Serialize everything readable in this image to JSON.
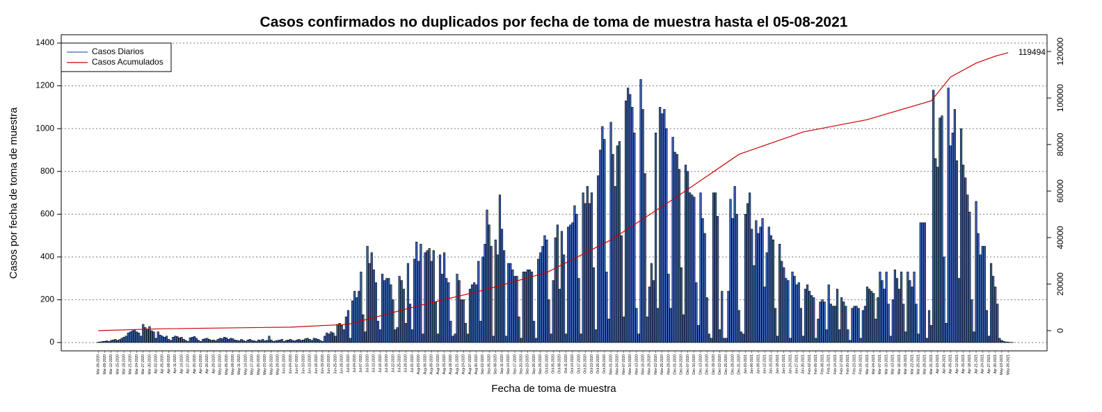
{
  "chart_data": {
    "type": "bar",
    "title": "Casos confirmados no duplicados por fecha de toma de muestra hasta el 05-08-2021",
    "x_label": "Fecha de toma de muestra",
    "y_label": "Casos por fecha de toma de muestra",
    "ylim": [
      -39,
      1439
    ],
    "yticks": [
      0,
      200,
      400,
      600,
      800,
      1000,
      1200,
      1400
    ],
    "y2lim": [
      -8700,
      127200
    ],
    "y2ticks": [
      0,
      20000,
      40000,
      60000,
      80000,
      100000,
      120000
    ],
    "grid": true,
    "legend": "top-left",
    "categories": [
      "Mar-06-2020",
      null,
      null,
      "Mar-09-2020",
      null,
      null,
      "Mar-12-2020",
      null,
      null,
      "Mar-15-2020",
      null,
      null,
      "Mar-18-2020",
      null,
      null,
      "Mar-21-2020",
      null,
      null,
      "Mar-24-2020",
      null,
      null,
      "Mar-27-2020",
      null,
      null,
      "Mar-30-2020",
      null,
      null,
      "Apr-02-2020",
      null,
      null,
      "Apr-05-2020",
      null,
      null,
      "Apr-08-2020",
      null,
      null,
      "Apr-11-2020",
      null,
      null,
      "Apr-14-2020",
      null,
      null,
      "Apr-17-2020",
      null,
      null,
      "Apr-20-2020",
      null,
      null,
      "Apr-23-2020",
      null,
      null,
      "Apr-26-2020",
      null,
      null,
      "Apr-29-2020",
      null,
      null,
      "May-02-2020",
      null,
      null,
      "May-05-2020",
      null,
      null,
      "May-08-2020",
      null,
      null,
      "May-11-2020",
      null,
      null,
      "May-14-2020",
      null,
      null,
      "May-17-2020",
      null,
      null,
      "May-20-2020",
      null,
      null,
      "May-23-2020",
      null,
      null,
      "May-26-2020",
      null,
      null,
      "May-29-2020",
      null,
      null,
      "Jun-01-2020",
      null,
      null,
      "Jun-04-2020",
      null,
      null,
      "Jun-07-2020",
      null,
      null,
      "Jun-10-2020",
      null,
      null,
      "Jun-13-2020",
      null,
      null,
      "Jun-16-2020",
      null,
      null,
      "Jun-19-2020",
      null,
      null,
      "Jun-22-2020",
      null,
      null,
      "Jun-25-2020",
      null,
      null,
      "Jun-28-2020",
      null,
      null,
      "Jul-01-2020",
      null,
      null,
      "Jul-04-2020",
      null,
      null,
      "Jul-07-2020",
      null,
      null,
      "Jul-10-2020",
      null,
      null,
      "Jul-13-2020",
      null,
      null,
      "Jul-16-2020",
      null,
      null,
      "Jul-19-2020",
      null,
      null,
      "Jul-22-2020",
      null,
      null,
      "Jul-25-2020",
      null,
      null,
      "Jul-28-2020",
      null,
      null,
      "Jul-31-2020",
      null,
      null,
      "Aug-03-2020",
      null,
      null,
      "Aug-06-2020",
      null,
      null,
      "Aug-09-2020",
      null,
      null,
      "Aug-12-2020",
      null,
      null,
      "Aug-15-2020",
      null,
      null,
      "Aug-18-2020",
      null,
      null,
      "Aug-21-2020",
      null,
      null,
      "Aug-24-2020",
      null,
      null,
      "Aug-27-2020",
      null,
      null,
      "Aug-30-2020",
      null,
      null,
      "Sep-02-2020",
      null,
      null,
      "Sep-05-2020",
      null,
      null,
      "Sep-08-2020",
      null,
      null,
      "Sep-11-2020",
      null,
      null,
      "Sep-14-2020",
      null,
      null,
      "Sep-17-2020",
      null,
      null,
      "Sep-20-2020",
      null,
      null,
      "Sep-23-2020",
      null,
      null,
      "Sep-26-2020",
      null,
      null,
      "Sep-29-2020",
      null,
      null,
      "Oct-02-2020",
      null,
      null,
      "Oct-05-2020",
      null,
      null,
      "Oct-08-2020",
      null,
      null,
      "Oct-11-2020",
      null,
      null,
      "Oct-14-2020",
      null,
      null,
      "Oct-17-2020",
      null,
      null,
      "Oct-20-2020",
      null,
      null,
      "Oct-23-2020",
      null,
      null,
      "Oct-26-2020",
      null,
      null,
      "Oct-29-2020",
      null,
      null,
      "Nov-01-2020",
      null,
      null,
      "Nov-04-2020",
      null,
      null,
      "Nov-07-2020",
      null,
      null,
      "Nov-10-2020",
      null,
      null,
      "Nov-13-2020",
      null,
      null,
      "Nov-16-2020",
      null,
      null,
      "Nov-19-2020",
      null,
      null,
      "Nov-22-2020",
      null,
      null,
      "Nov-25-2020",
      null,
      null,
      "Nov-28-2020",
      null,
      null,
      "Dec-01-2020",
      null,
      null,
      "Dec-04-2020",
      null,
      null,
      "Dec-07-2020",
      null,
      null,
      "Dec-10-2020",
      null,
      null,
      "Dec-13-2020",
      null,
      null,
      "Dec-16-2020",
      null,
      null,
      "Dec-19-2020",
      null,
      null,
      "Dec-22-2020",
      null,
      null,
      "Dec-25-2020",
      null,
      null,
      "Dec-28-2020",
      null,
      null,
      "Dec-31-2020",
      null,
      null,
      "Jan-03-2021",
      null,
      null,
      "Jan-06-2021",
      null,
      null,
      "Jan-09-2021",
      null,
      null,
      "Jan-12-2021",
      null,
      null,
      "Jan-15-2021",
      null,
      null,
      "Jan-18-2021",
      null,
      null,
      "Jan-21-2021",
      null,
      null,
      "Jan-24-2021",
      null,
      null,
      "Jan-27-2021",
      null,
      null,
      "Jan-30-2021",
      null,
      null,
      "Feb-02-2021",
      null,
      null,
      "Feb-05-2021",
      null,
      null,
      "Feb-08-2021",
      null,
      null,
      "Feb-11-2021",
      null,
      null,
      "Feb-14-2021",
      null,
      null,
      "Feb-17-2021",
      null,
      null,
      "Feb-20-2021",
      null,
      null,
      "Feb-23-2021",
      null,
      null,
      "Feb-26-2021",
      null,
      null,
      "Mar-01-2021",
      null,
      null,
      "Mar-04-2021",
      null,
      null,
      "Mar-07-2021",
      null,
      null,
      "Mar-10-2021",
      null,
      null,
      "Mar-13-2021",
      null,
      null,
      "Mar-16-2021",
      null,
      null,
      "Mar-19-2021",
      null,
      null,
      "Mar-22-2021",
      null,
      null,
      "Mar-25-2021",
      null,
      null,
      "Mar-28-2021",
      null,
      null,
      "Mar-31-2021",
      null,
      null,
      "Apr-03-2021",
      null,
      null,
      "Apr-06-2021",
      null,
      null,
      "Apr-09-2021",
      null,
      null,
      "Apr-12-2021",
      null,
      null,
      "Apr-15-2021",
      null,
      null,
      "Apr-18-2021",
      null,
      null,
      "Apr-21-2021",
      null,
      null,
      "Apr-24-2021",
      null,
      null,
      "Apr-27-2021",
      null,
      null,
      "Apr-30-2021",
      null,
      null,
      "May-03-2021",
      null,
      null,
      "May-06-2021",
      null,
      null
    ],
    "series": [
      {
        "name": "Casos Diarios",
        "color": "#3a62b0",
        "values": [
          2,
          3,
          5,
          6,
          8,
          5,
          10,
          12,
          15,
          10,
          14,
          20,
          25,
          30,
          45,
          50,
          55,
          60,
          50,
          45,
          30,
          85,
          70,
          60,
          75,
          55,
          50,
          20,
          50,
          35,
          30,
          25,
          30,
          15,
          10,
          25,
          30,
          28,
          22,
          25,
          15,
          10,
          5,
          22,
          25,
          28,
          20,
          10,
          5,
          15,
          18,
          20,
          15,
          10,
          12,
          8,
          15,
          20,
          18,
          25,
          22,
          15,
          20,
          18,
          12,
          10,
          8,
          15,
          10,
          5,
          12,
          15,
          10,
          8,
          5,
          12,
          10,
          15,
          8,
          10,
          30,
          12,
          5,
          8,
          10,
          12,
          15,
          5,
          10,
          12,
          15,
          10,
          8,
          12,
          15,
          10,
          12,
          18,
          20,
          15,
          10,
          20,
          18,
          15,
          10,
          5,
          30,
          45,
          40,
          50,
          45,
          30,
          85,
          90,
          80,
          60,
          120,
          150,
          20,
          195,
          240,
          210,
          240,
          330,
          130,
          50,
          450,
          370,
          420,
          340,
          280,
          100,
          60,
          320,
          290,
          300,
          300,
          270,
          200,
          60,
          70,
          310,
          290,
          250,
          90,
          370,
          180,
          60,
          390,
          470,
          380,
          460,
          40,
          420,
          430,
          440,
          380,
          430,
          190,
          40,
          410,
          320,
          420,
          300,
          280,
          100,
          30,
          40,
          320,
          290,
          200,
          200,
          90,
          40,
          250,
          270,
          280,
          270,
          380,
          100,
          400,
          460,
          620,
          550,
          450,
          30,
          480,
          410,
          690,
          530,
          430,
          30,
          370,
          370,
          340,
          310,
          310,
          120,
          20,
          330,
          330,
          340,
          340,
          330,
          100,
          20,
          390,
          420,
          450,
          500,
          480,
          200,
          40,
          290,
          490,
          550,
          250,
          520,
          410,
          40,
          540,
          550,
          560,
          640,
          600,
          300,
          40,
          700,
          650,
          730,
          650,
          700,
          350,
          60,
          780,
          900,
          1010,
          950,
          330,
          110,
          1030,
          880,
          730,
          920,
          940,
          500,
          120,
          1130,
          1190,
          1160,
          1100,
          980,
          160,
          40,
          1230,
          1090,
          790,
          120,
          260,
          370,
          290,
          980,
          160,
          1100,
          1070,
          1090,
          1000,
          320,
          160,
          960,
          890,
          880,
          810,
          350,
          130,
          830,
          800,
          700,
          690,
          680,
          280,
          80,
          700,
          580,
          510,
          210,
          40,
          20,
          700,
          700,
          590,
          60,
          240,
          20,
          20,
          240,
          670,
          580,
          730,
          600,
          150,
          50,
          40,
          600,
          650,
          700,
          530,
          360,
          570,
          510,
          540,
          580,
          260,
          420,
          540,
          500,
          480,
          160,
          30,
          460,
          380,
          350,
          300,
          290,
          20,
          330,
          310,
          270,
          280,
          160,
          30,
          250,
          270,
          240,
          220,
          210,
          20,
          110,
          190,
          200,
          190,
          60,
          270,
          180,
          170,
          170,
          250,
          60,
          210,
          190,
          170,
          60,
          10,
          160,
          170,
          170,
          160,
          20,
          150,
          170,
          260,
          250,
          240,
          230,
          110,
          210,
          330,
          290,
          250,
          330,
          180,
          30,
          200,
          340,
          300,
          250,
          330,
          180,
          50,
          330,
          290,
          260,
          330,
          180,
          40,
          560,
          560,
          560,
          20,
          150,
          80,
          1180,
          860,
          820,
          1050,
          1060,
          400,
          90,
          1190,
          920,
          980,
          1090,
          850,
          300,
          1000,
          830,
          770,
          690,
          610,
          200,
          50,
          660,
          510,
          410,
          450,
          450,
          150,
          30,
          370,
          310,
          260,
          180,
          20,
          10,
          5,
          3,
          2,
          1,
          1
        ]
      },
      {
        "name": "Casos Acumulados",
        "color": "#cc0000",
        "type": "line",
        "axis": "y2",
        "x": [
          "Mar-06-2020",
          "Apr-05-2020",
          "Jun-04-2020",
          "Jul-01-2020",
          "Aug-03-2020",
          "Sep-02-2020",
          "Oct-02-2020",
          "Nov-01-2020",
          "Dec-01-2020",
          "Dec-31-2020",
          "Jan-30-2021",
          "Mar-01-2021",
          "Mar-31-2021",
          "Apr-09-2021",
          "Apr-21-2021",
          "Apr-30-2021",
          "May-06-2021"
        ],
        "values": [
          0,
          800,
          1500,
          2700,
          10700,
          17300,
          25000,
          39000,
          57000,
          75800,
          85400,
          90700,
          98800,
          109000,
          115000,
          118000,
          119494
        ]
      }
    ]
  }
}
